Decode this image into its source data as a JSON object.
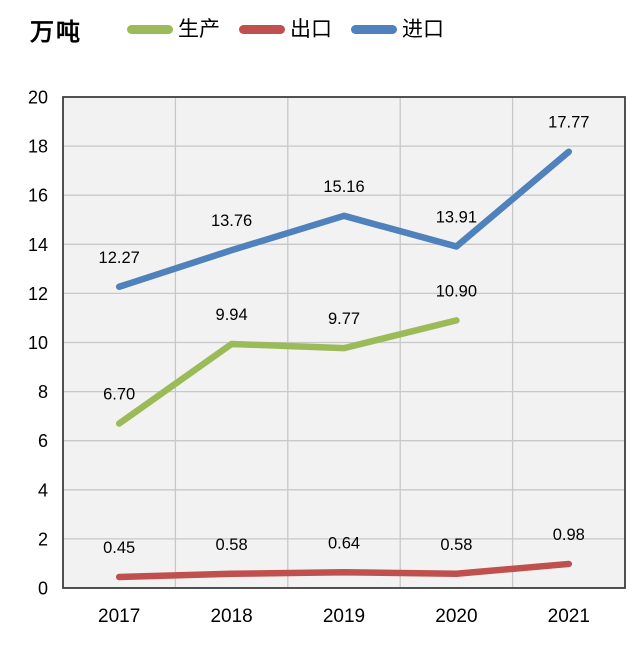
{
  "unit_label": "万吨",
  "colors": {
    "background": "#FFFFFF",
    "plot_background": "#F2F2F2",
    "gridline": "#C8C8C8",
    "plot_border": "#404040",
    "text": "#000000",
    "series_production": "#9BBB59",
    "series_export": "#C0504D",
    "series_import": "#4F81BD"
  },
  "legend": {
    "items": [
      {
        "key": "production",
        "label": "生产",
        "color": "#9BBB59"
      },
      {
        "key": "export",
        "label": "出口",
        "color": "#C0504D"
      },
      {
        "key": "import",
        "label": "进口",
        "color": "#4F81BD"
      }
    ]
  },
  "chart_data": {
    "type": "line",
    "categories": [
      "2017",
      "2018",
      "2019",
      "2020",
      "2021"
    ],
    "series": [
      {
        "name": "生产",
        "key": "production",
        "color": "#9BBB59",
        "values": [
          6.7,
          9.94,
          9.77,
          10.9,
          null
        ],
        "point_labels": [
          "6.70",
          "9.94",
          "9.77",
          "10.90",
          ""
        ]
      },
      {
        "name": "出口",
        "key": "export",
        "color": "#C0504D",
        "values": [
          0.45,
          0.58,
          0.64,
          0.58,
          0.98
        ],
        "point_labels": [
          "0.45",
          "0.58",
          "0.64",
          "0.58",
          "0.98"
        ]
      },
      {
        "name": "进口",
        "key": "import",
        "color": "#4F81BD",
        "values": [
          12.27,
          13.76,
          15.16,
          13.91,
          17.77
        ],
        "point_labels": [
          "12.27",
          "13.76",
          "15.16",
          "13.91",
          "17.77"
        ]
      }
    ],
    "title": "",
    "xlabel": "",
    "ylabel": "万吨",
    "ylim": [
      0,
      20
    ],
    "ytick_step": 2,
    "y_ticks": [
      "0",
      "2",
      "4",
      "6",
      "8",
      "10",
      "12",
      "14",
      "16",
      "18",
      "20"
    ],
    "grid": true,
    "legend_position": "top"
  }
}
